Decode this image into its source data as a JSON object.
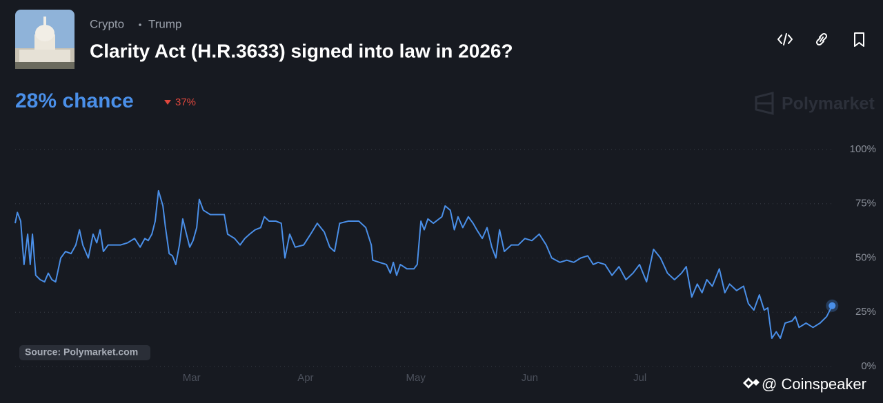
{
  "header": {
    "breadcrumbs": [
      "Crypto",
      "Trump"
    ],
    "title": "Clarity Act (H.R.3633) signed into law in 2026?",
    "chance": "28% chance",
    "change": "37%"
  },
  "brand": "Polymarket",
  "source": "Source: Polymarket.com",
  "watermark": "@ Coinspeaker",
  "chart_data": {
    "type": "line",
    "color": "#4a8fe8",
    "grid": true,
    "x": [
      12,
      12.6,
      13.5,
      14.4,
      15.4,
      16.1,
      16.7,
      17.6,
      18.8,
      20,
      21,
      22,
      23,
      24.4,
      25.7,
      27.2,
      28.5,
      29.5,
      30.4,
      31.9,
      33.2,
      34.2,
      35.1,
      36,
      37.3,
      38.8,
      40.7,
      42.6,
      44.5,
      46,
      47.3,
      48.2,
      49.2,
      50.1,
      51,
      52.2,
      52.9,
      53.9,
      54.8,
      55.7,
      56.7,
      57.6,
      58.6,
      59.5,
      60.4,
      61.4,
      62.1,
      63.2,
      65.1,
      67,
      68.9,
      69.8,
      71.7,
      73.2,
      74.5,
      75.8,
      77.3,
      78.8,
      79.8,
      81.1,
      82.9,
      84.4,
      85.4,
      86.7,
      88.2,
      90.5,
      92.4,
      94.2,
      96.1,
      97.6,
      98.9,
      100.3,
      102.7,
      105.5,
      107.4,
      108.9,
      109.3,
      111.1,
      113,
      114.1,
      114.9,
      115.8,
      116.8,
      118.6,
      120.5,
      121.4,
      122.4,
      123.3,
      124.3,
      125.8,
      128.1,
      129,
      130.4,
      131.5,
      132.5,
      133.8,
      135.3,
      136.6,
      137.6,
      139.1,
      140.4,
      141.7,
      142.8,
      143.8,
      145.1,
      147,
      148.9,
      150.7,
      152.6,
      154.6,
      156.5,
      158,
      160.2,
      162.1,
      164,
      165.9,
      167.8,
      169.3,
      170.6,
      172.5,
      174.4,
      176.3,
      178.2,
      180.1,
      181.9,
      183.8,
      184.8,
      185.7,
      187.6,
      189.5,
      191.4,
      193.3,
      194.6,
      196.1,
      197.6,
      198.9,
      200.2,
      201.7,
      203.6,
      205.1,
      206.4,
      208.3,
      210.2,
      211.5,
      213,
      214.5,
      215.8,
      216.8,
      217.9,
      219.1,
      220.2,
      221.5,
      223.4,
      224.3,
      225.3,
      227.2,
      229.1,
      231,
      232.8,
      234.3
    ],
    "values": [
      66,
      71,
      67,
      47,
      61,
      47,
      61,
      42,
      40,
      39,
      43,
      40,
      39,
      50,
      53,
      52,
      56,
      63,
      56,
      50,
      61,
      57,
      63,
      53,
      56,
      56,
      56,
      57,
      59,
      55,
      59,
      58,
      61,
      67,
      81,
      74,
      64,
      52,
      51,
      47,
      56,
      68,
      61,
      55,
      58,
      64,
      77,
      72,
      70,
      70,
      70,
      61,
      59,
      56,
      59,
      61,
      63,
      64,
      69,
      67,
      67,
      66,
      50,
      61,
      55,
      56,
      61,
      66,
      62,
      55,
      53,
      66,
      67,
      67,
      64,
      56,
      49,
      48,
      47,
      43,
      48,
      42,
      47,
      45,
      45,
      47,
      67,
      63,
      68,
      66,
      69,
      74,
      72,
      63,
      69,
      64,
      69,
      66,
      63,
      59,
      64,
      55,
      50,
      63,
      53,
      56,
      56,
      59,
      58,
      61,
      56,
      50,
      48,
      49,
      48,
      50,
      51,
      47,
      48,
      47,
      42,
      46,
      40,
      43,
      47,
      39,
      47,
      54,
      50,
      43,
      40,
      43,
      46,
      32,
      38,
      34,
      40,
      37,
      45,
      34,
      38,
      35,
      37,
      29,
      26,
      33,
      26,
      27,
      13,
      16,
      13,
      20,
      21,
      23,
      18,
      20,
      18,
      20,
      23,
      28
    ],
    "xlim": [
      12,
      235
    ],
    "xticks": [
      {
        "value": 60,
        "label": "Mar"
      },
      {
        "value": 91,
        "label": "Apr"
      },
      {
        "value": 121,
        "label": "May"
      },
      {
        "value": 152,
        "label": "Jun"
      },
      {
        "value": 182,
        "label": "Jul"
      }
    ],
    "ylim": [
      0,
      100
    ],
    "yticks": [
      {
        "value": 0,
        "label": "0%"
      },
      {
        "value": 25,
        "label": "25%"
      },
      {
        "value": 50,
        "label": "50%"
      },
      {
        "value": 75,
        "label": "75%"
      },
      {
        "value": 100,
        "label": "100%"
      }
    ]
  }
}
